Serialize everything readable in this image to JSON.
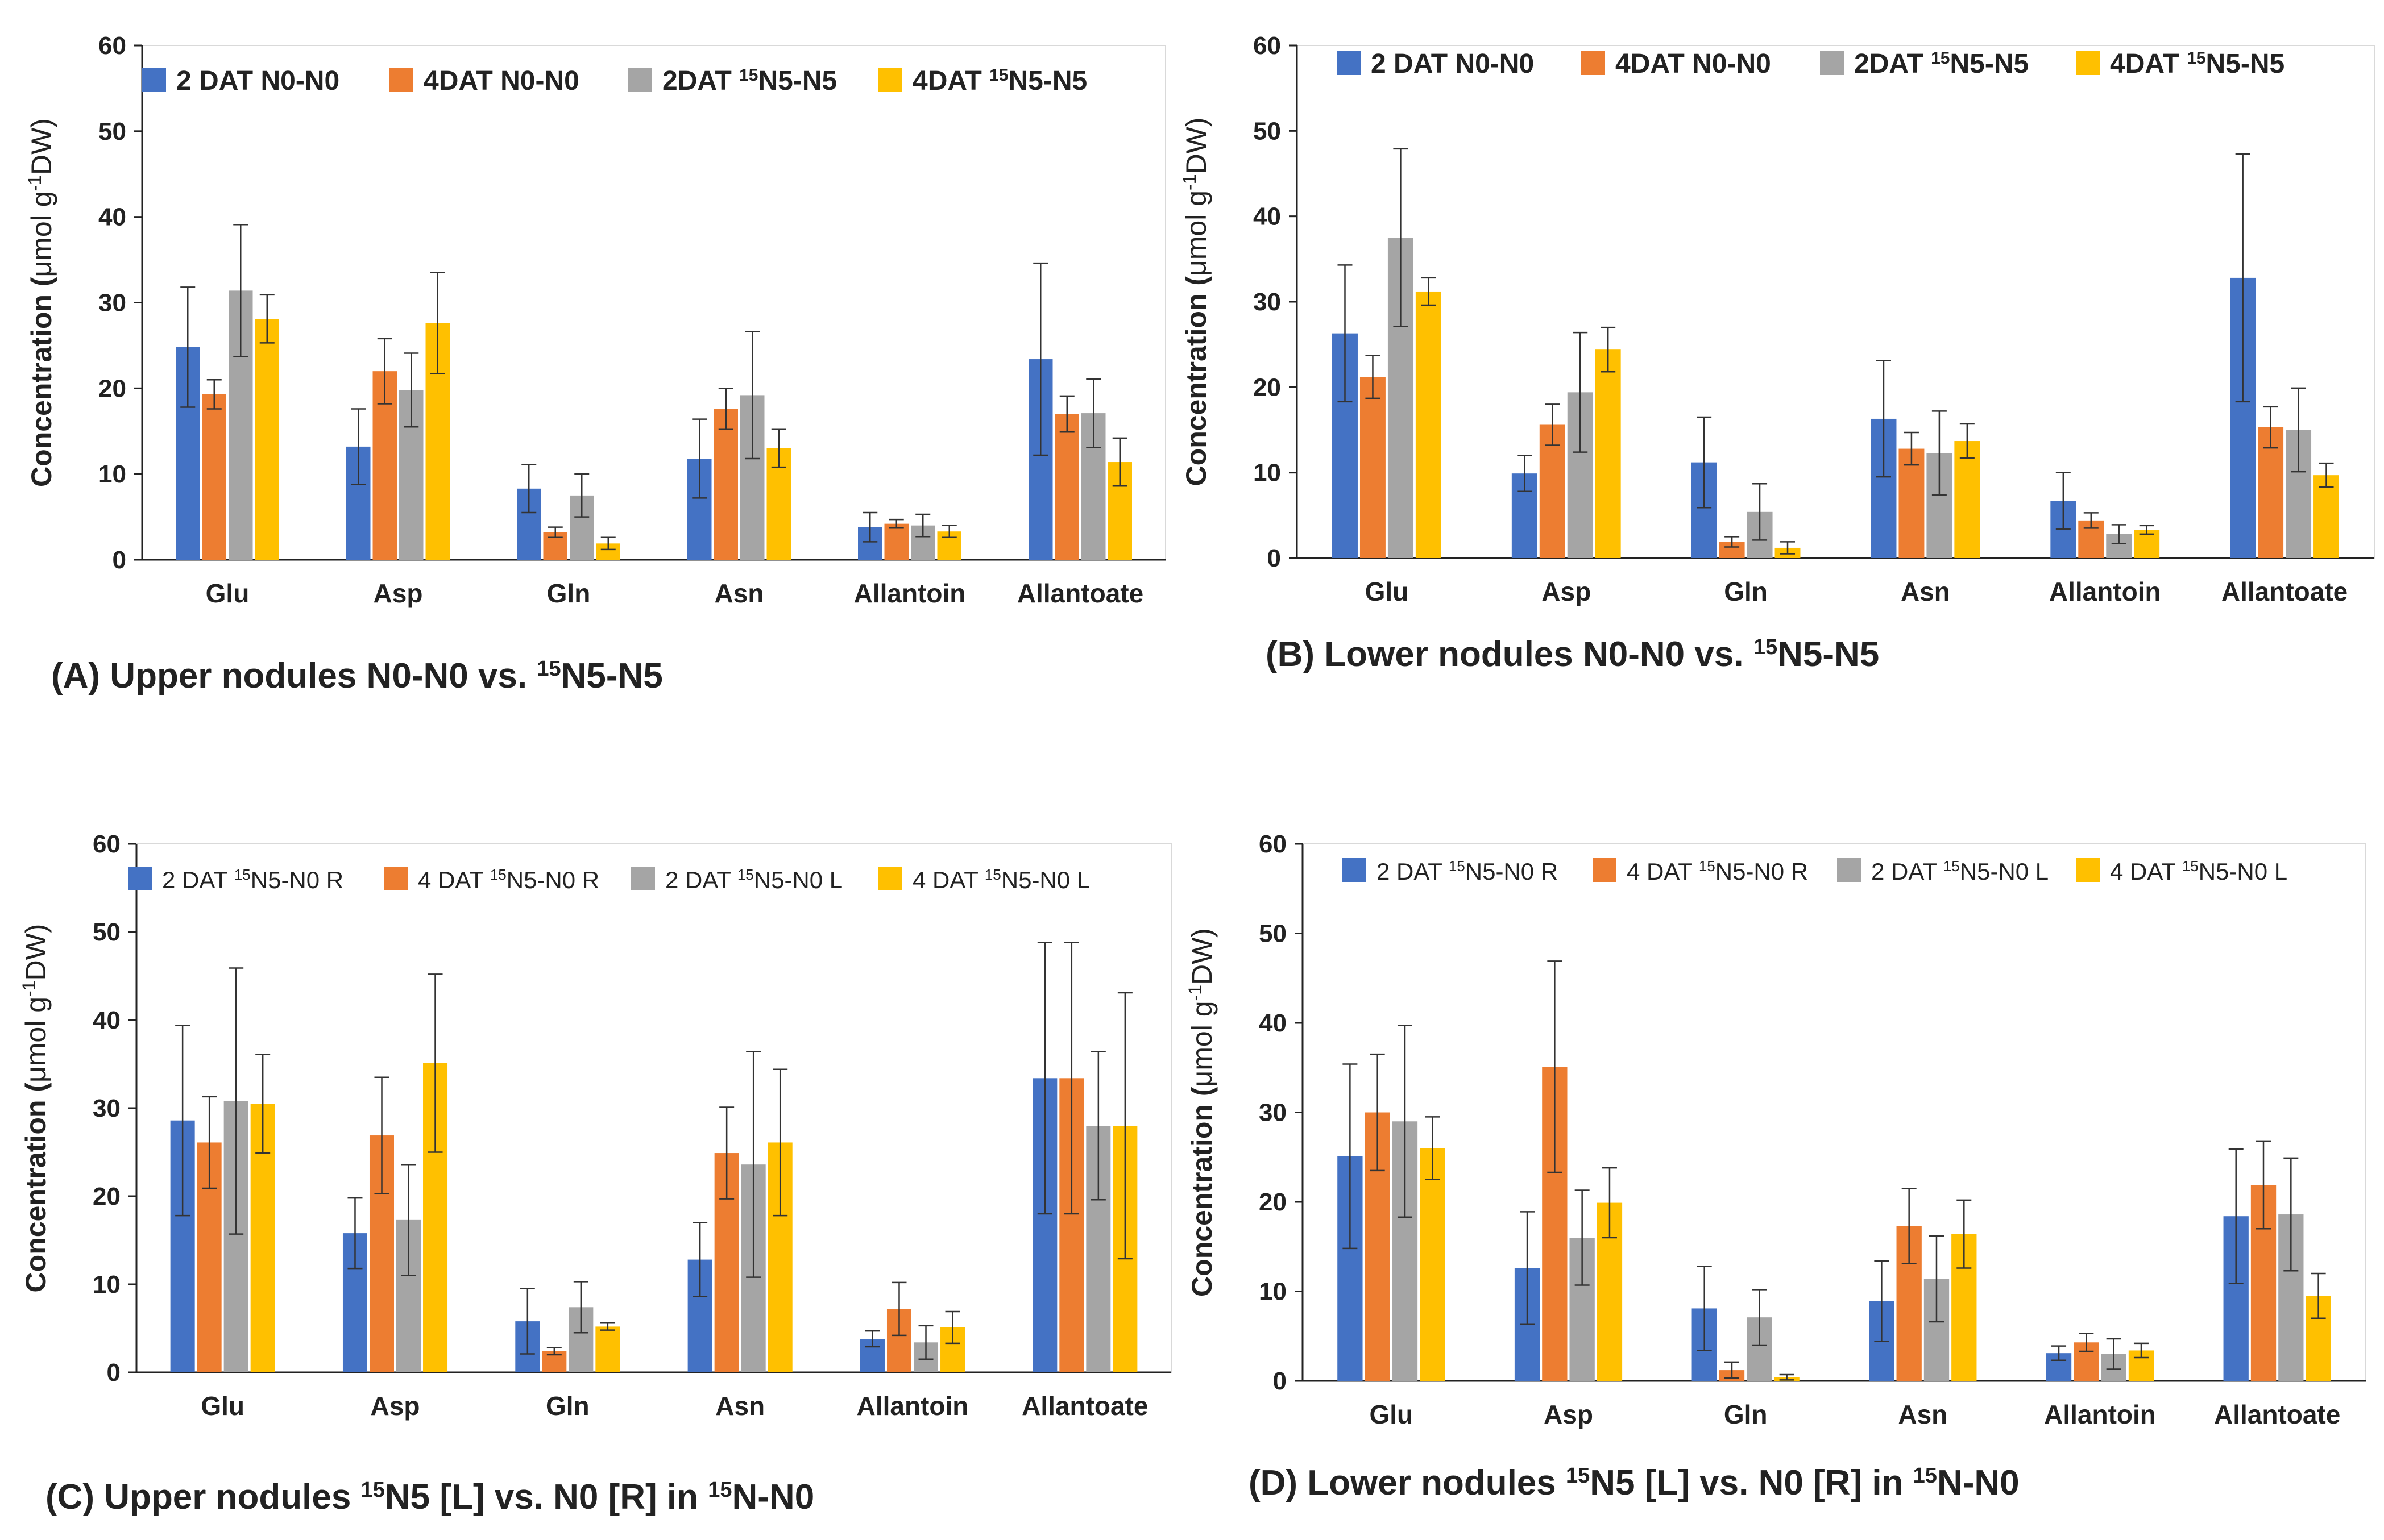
{
  "figure": {
    "colors": [
      "#4472C4",
      "#ED7D31",
      "#A5A5A5",
      "#FFC000"
    ],
    "axis_color": "#222222",
    "ylabel_prefix": "Concentration (",
    "ylabel_unit_mu": "μmol g",
    "ylabel_exp": "-1",
    "ylabel_suffix": "DW)"
  },
  "chart_data": [
    {
      "id": "A",
      "type": "bar",
      "title_parts": [
        {
          "t": "(A) Upper nodules   N0-N0 vs. ",
          "sup": false
        },
        {
          "t": "15",
          "sup": true
        },
        {
          "t": "N5-N5",
          "sup": false
        }
      ],
      "categories": [
        "Glu",
        "Asp",
        "Gln",
        "Asn",
        "Allantoin",
        "Allantoate"
      ],
      "ylim": [
        0,
        60
      ],
      "yticks": [
        0,
        10,
        20,
        30,
        40,
        50,
        60
      ],
      "legend_bold": true,
      "series": [
        {
          "name_parts": [
            {
              "t": "2 DAT N0-N0",
              "sup": false
            }
          ],
          "values": [
            24.8,
            13.2,
            8.3,
            11.8,
            3.8,
            23.4
          ],
          "errors": [
            7.0,
            4.4,
            2.8,
            4.6,
            1.7,
            11.2
          ]
        },
        {
          "name_parts": [
            {
              "t": "4DAT N0-N0",
              "sup": false
            }
          ],
          "values": [
            19.3,
            22.0,
            3.2,
            17.6,
            4.2,
            17.0
          ],
          "errors": [
            1.7,
            3.8,
            0.6,
            2.4,
            0.5,
            2.1
          ]
        },
        {
          "name_parts": [
            {
              "t": "2DAT ",
              "sup": false
            },
            {
              "t": "15",
              "sup": true
            },
            {
              "t": "N5-N5",
              "sup": false
            }
          ],
          "values": [
            31.4,
            19.8,
            7.5,
            19.2,
            4.0,
            17.1
          ],
          "errors": [
            7.7,
            4.3,
            2.5,
            7.4,
            1.3,
            4.0
          ]
        },
        {
          "name_parts": [
            {
              "t": "4DAT ",
              "sup": false
            },
            {
              "t": "15",
              "sup": true
            },
            {
              "t": "N5-N5",
              "sup": false
            }
          ],
          "values": [
            28.1,
            27.6,
            1.9,
            13.0,
            3.3,
            11.4
          ],
          "errors": [
            2.8,
            5.9,
            0.7,
            2.2,
            0.7,
            2.8
          ]
        }
      ]
    },
    {
      "id": "B",
      "type": "bar",
      "title_parts": [
        {
          "t": "(B) Lower nodules N0-N0 vs. ",
          "sup": false
        },
        {
          "t": "15",
          "sup": true
        },
        {
          "t": "N5-N5",
          "sup": false
        }
      ],
      "categories": [
        "Glu",
        "Asp",
        "Gln",
        "Asn",
        "Allantoin",
        "Allantoate"
      ],
      "ylim": [
        0,
        60
      ],
      "yticks": [
        0,
        10,
        20,
        30,
        40,
        50,
        60
      ],
      "legend_bold": true,
      "series": [
        {
          "name_parts": [
            {
              "t": "2 DAT N0-N0",
              "sup": false
            }
          ],
          "values": [
            26.3,
            9.9,
            11.2,
            16.3,
            6.7,
            32.8
          ],
          "errors": [
            8.0,
            2.1,
            5.3,
            6.8,
            3.3,
            14.5
          ]
        },
        {
          "name_parts": [
            {
              "t": "4DAT N0-N0",
              "sup": false
            }
          ],
          "values": [
            21.2,
            15.6,
            1.9,
            12.8,
            4.4,
            15.3
          ],
          "errors": [
            2.5,
            2.4,
            0.6,
            1.9,
            0.9,
            2.4
          ]
        },
        {
          "name_parts": [
            {
              "t": "2DAT ",
              "sup": false
            },
            {
              "t": "15",
              "sup": true
            },
            {
              "t": "N5-N5",
              "sup": false
            }
          ],
          "values": [
            37.5,
            19.4,
            5.4,
            12.3,
            2.8,
            15.0
          ],
          "errors": [
            10.4,
            7.0,
            3.3,
            4.9,
            1.1,
            4.9
          ]
        },
        {
          "name_parts": [
            {
              "t": "4DAT ",
              "sup": false
            },
            {
              "t": "15",
              "sup": true
            },
            {
              "t": "N5-N5",
              "sup": false
            }
          ],
          "values": [
            31.2,
            24.4,
            1.2,
            13.7,
            3.3,
            9.7
          ],
          "errors": [
            1.6,
            2.6,
            0.7,
            2.0,
            0.5,
            1.4
          ]
        }
      ]
    },
    {
      "id": "C",
      "type": "bar",
      "title_parts": [
        {
          "t": "(C) Upper nodules ",
          "sup": false
        },
        {
          "t": "15",
          "sup": true
        },
        {
          "t": "N5 [L] vs. N0 [R] in ",
          "sup": false
        },
        {
          "t": "15",
          "sup": true
        },
        {
          "t": "N-N0",
          "sup": false
        }
      ],
      "categories": [
        "Glu",
        "Asp",
        "Gln",
        "Asn",
        "Allantoin",
        "Allantoate"
      ],
      "ylim": [
        0,
        60
      ],
      "yticks": [
        0,
        10,
        20,
        30,
        40,
        50,
        60
      ],
      "legend_bold": false,
      "series": [
        {
          "name_parts": [
            {
              "t": "2 DAT ",
              "sup": false
            },
            {
              "t": "15",
              "sup": true
            },
            {
              "t": "N5-N0  R",
              "sup": false
            }
          ],
          "values": [
            28.6,
            15.8,
            5.8,
            12.8,
            3.8,
            33.4
          ],
          "errors": [
            10.8,
            4.0,
            3.7,
            4.2,
            0.9,
            15.4
          ]
        },
        {
          "name_parts": [
            {
              "t": "4 DAT ",
              "sup": false
            },
            {
              "t": "15",
              "sup": true
            },
            {
              "t": "N5-N0  R",
              "sup": false
            }
          ],
          "values": [
            26.1,
            26.9,
            2.4,
            24.9,
            7.2,
            33.4
          ],
          "errors": [
            5.2,
            6.6,
            0.4,
            5.2,
            3.0,
            15.4
          ]
        },
        {
          "name_parts": [
            {
              "t": "2 DAT ",
              "sup": false
            },
            {
              "t": "15",
              "sup": true
            },
            {
              "t": "N5-N0  L",
              "sup": false
            }
          ],
          "values": [
            30.8,
            17.3,
            7.4,
            23.6,
            3.4,
            28.0
          ],
          "errors": [
            15.1,
            6.3,
            2.9,
            12.8,
            1.9,
            8.4
          ]
        },
        {
          "name_parts": [
            {
              "t": "4 DAT ",
              "sup": false
            },
            {
              "t": "15",
              "sup": true
            },
            {
              "t": "N5-N0  L",
              "sup": false
            }
          ],
          "values": [
            30.5,
            35.1,
            5.2,
            26.1,
            5.1,
            28.0
          ],
          "errors": [
            5.6,
            10.1,
            0.4,
            8.3,
            1.8,
            15.1
          ]
        }
      ]
    },
    {
      "id": "D",
      "type": "bar",
      "title_parts": [
        {
          "t": "(D) Lower nodules ",
          "sup": false
        },
        {
          "t": "15",
          "sup": true
        },
        {
          "t": "N5 [L] vs. N0 [R] in ",
          "sup": false
        },
        {
          "t": "15",
          "sup": true
        },
        {
          "t": "N-N0",
          "sup": false
        }
      ],
      "categories": [
        "Glu",
        "Asp",
        "Gln",
        "Asn",
        "Allantoin",
        "Allantoate"
      ],
      "ylim": [
        0,
        60
      ],
      "yticks": [
        0,
        10,
        20,
        30,
        40,
        50,
        60
      ],
      "legend_bold": false,
      "series": [
        {
          "name_parts": [
            {
              "t": "2 DAT ",
              "sup": false
            },
            {
              "t": "15",
              "sup": true
            },
            {
              "t": "N5-N0  R",
              "sup": false
            }
          ],
          "values": [
            25.1,
            12.6,
            8.1,
            8.9,
            3.1,
            18.4
          ],
          "errors": [
            10.3,
            6.3,
            4.7,
            4.5,
            0.8,
            7.5
          ]
        },
        {
          "name_parts": [
            {
              "t": "4 DAT ",
              "sup": false
            },
            {
              "t": "15",
              "sup": true
            },
            {
              "t": "N5-N0  R",
              "sup": false
            }
          ],
          "values": [
            30.0,
            35.1,
            1.2,
            17.3,
            4.3,
            21.9
          ],
          "errors": [
            6.5,
            11.8,
            0.9,
            4.2,
            1.0,
            4.9
          ]
        },
        {
          "name_parts": [
            {
              "t": "2 DAT ",
              "sup": false
            },
            {
              "t": "15",
              "sup": true
            },
            {
              "t": "N5-N0  L",
              "sup": false
            }
          ],
          "values": [
            29.0,
            16.0,
            7.1,
            11.4,
            3.0,
            18.6
          ],
          "errors": [
            10.7,
            5.3,
            3.1,
            4.8,
            1.7,
            6.3
          ]
        },
        {
          "name_parts": [
            {
              "t": "4 DAT ",
              "sup": false
            },
            {
              "t": "15",
              "sup": true
            },
            {
              "t": "N5-N0  L",
              "sup": false
            }
          ],
          "values": [
            26.0,
            19.9,
            0.4,
            16.4,
            3.4,
            9.5
          ],
          "errors": [
            3.5,
            3.9,
            0.3,
            3.8,
            0.8,
            2.5
          ]
        }
      ]
    }
  ]
}
